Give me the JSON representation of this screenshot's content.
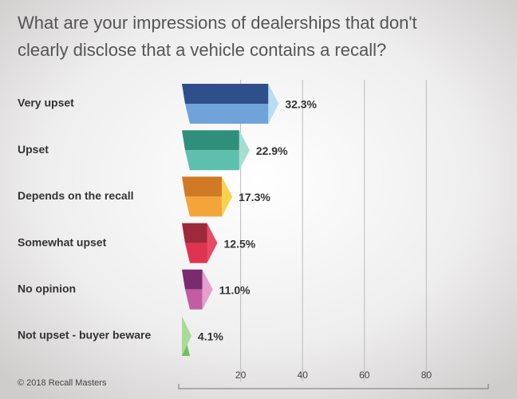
{
  "chart_data": {
    "type": "prism-bar",
    "title": [
      "What are your impressions of dealerships that don't",
      "clearly disclose that a vehicle contains a recall?"
    ],
    "categories": [
      "Very upset",
      "Upset",
      "Depends on the recall",
      "Somewhat upset",
      "No opinion",
      "Not upset - buyer beware"
    ],
    "values": [
      32.3,
      22.9,
      17.3,
      12.5,
      11.0,
      4.1
    ],
    "value_labels": [
      "32.3%",
      "22.9%",
      "17.3%",
      "12.5%",
      "11.0%",
      "4.1%"
    ],
    "colors": [
      [
        "#2e4f8a",
        "#6fa3d9",
        "#b8dcf2"
      ],
      [
        "#2f8f7a",
        "#5cc0ad",
        "#a6dcd2"
      ],
      [
        "#d17a26",
        "#f4a53a",
        "#f9d24c"
      ],
      [
        "#9c2a3a",
        "#e0334f",
        "#e84a63"
      ],
      [
        "#7a2a6f",
        "#c25da3",
        "#e3a0cc"
      ],
      [
        "#3c8a2f",
        "#6fc05a",
        "#a8db94"
      ]
    ],
    "xlim": [
      0,
      100
    ],
    "xticks": [
      20,
      40,
      60,
      80
    ],
    "grid": true,
    "footer": "© 2018 Recall Masters"
  }
}
